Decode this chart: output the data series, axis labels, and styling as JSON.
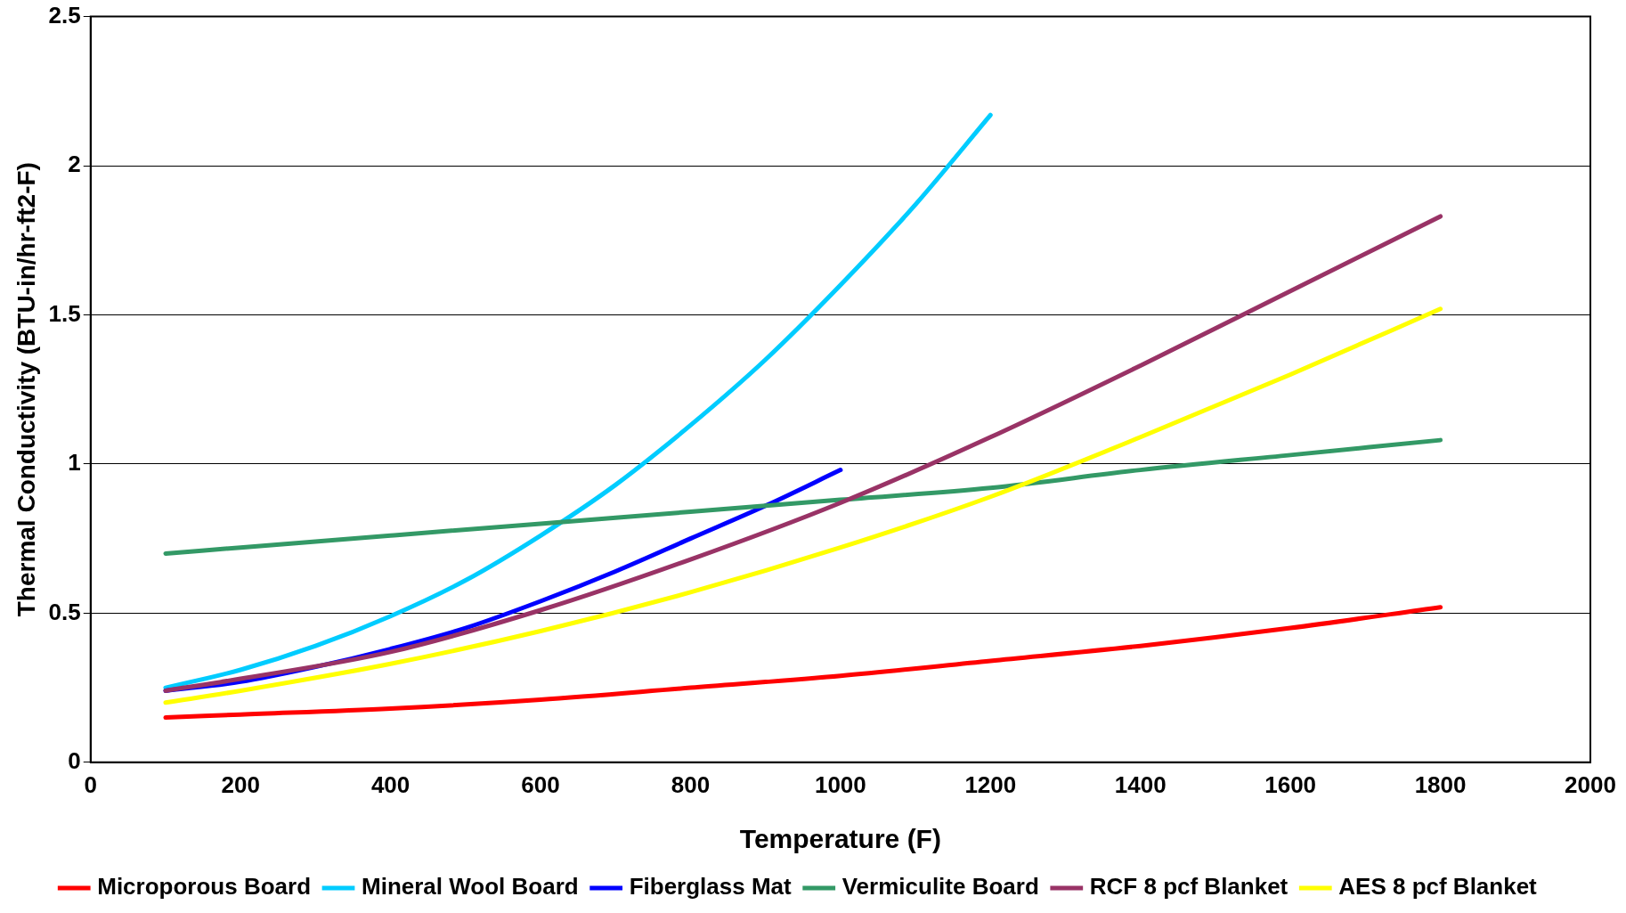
{
  "chart_data": {
    "type": "line",
    "xlabel": "Temperature (F)",
    "ylabel": "Thermal Conductivity (BTU-in/hr-ft2-F)",
    "xlim": [
      0,
      2000
    ],
    "xticks": [
      0,
      200,
      400,
      600,
      800,
      1000,
      1200,
      1400,
      1600,
      1800,
      2000
    ],
    "ylim": [
      0,
      2.5
    ],
    "yticks": [
      0,
      0.5,
      1,
      1.5,
      2,
      2.5
    ],
    "grid": "y",
    "legend": "bottom",
    "marker": "none",
    "line_style": "solid",
    "series": [
      {
        "name": "Microporous Board",
        "color": "#ff0000",
        "x": [
          100,
          200,
          400,
          600,
          800,
          1000,
          1200,
          1400,
          1600,
          1800
        ],
        "values": [
          0.15,
          0.16,
          0.18,
          0.21,
          0.25,
          0.29,
          0.34,
          0.39,
          0.45,
          0.52
        ]
      },
      {
        "name": "Mineral Wool Board",
        "color": "#00ccff",
        "x": [
          100,
          200,
          300,
          400,
          500,
          600,
          700,
          800,
          900,
          1000,
          1100,
          1200
        ],
        "values": [
          0.25,
          0.31,
          0.39,
          0.49,
          0.61,
          0.76,
          0.93,
          1.13,
          1.35,
          1.6,
          1.87,
          2.17
        ]
      },
      {
        "name": "Fiberglass Mat",
        "color": "#0000ff",
        "x": [
          100,
          200,
          300,
          400,
          500,
          600,
          700,
          800,
          900,
          1000
        ],
        "values": [
          0.24,
          0.27,
          0.32,
          0.38,
          0.45,
          0.54,
          0.64,
          0.75,
          0.86,
          0.98
        ]
      },
      {
        "name": "Vermiculite Board",
        "color": "#339966",
        "x": [
          100,
          200,
          400,
          600,
          800,
          1000,
          1200,
          1400,
          1600,
          1800
        ],
        "values": [
          0.7,
          0.72,
          0.76,
          0.8,
          0.84,
          0.88,
          0.92,
          0.98,
          1.03,
          1.08
        ]
      },
      {
        "name": "RCF 8 pcf Blanket",
        "color": "#993366",
        "x": [
          100,
          200,
          400,
          600,
          800,
          1000,
          1200,
          1400,
          1600,
          1800
        ],
        "values": [
          0.24,
          0.28,
          0.37,
          0.51,
          0.68,
          0.87,
          1.09,
          1.33,
          1.58,
          1.83
        ]
      },
      {
        "name": "AES 8 pcf Blanket",
        "color": "#ffff00",
        "x": [
          100,
          200,
          400,
          600,
          800,
          1000,
          1200,
          1400,
          1600,
          1800
        ],
        "values": [
          0.2,
          0.24,
          0.33,
          0.44,
          0.57,
          0.72,
          0.89,
          1.09,
          1.3,
          1.52
        ]
      }
    ]
  }
}
